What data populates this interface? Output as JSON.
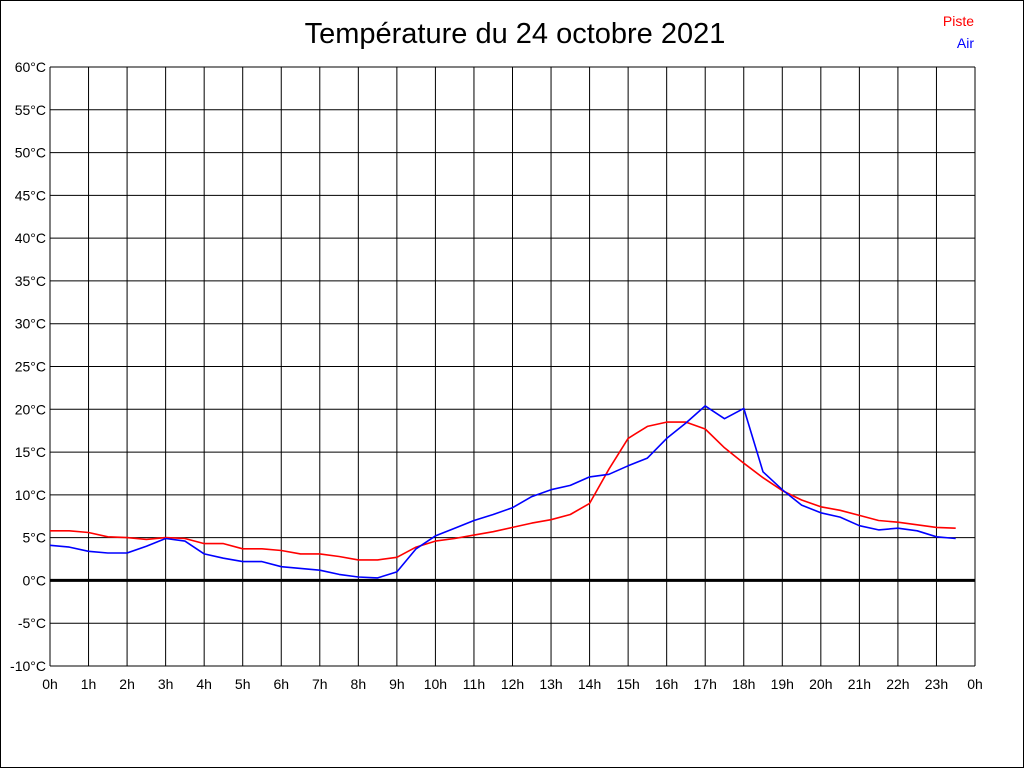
{
  "chart_data": {
    "type": "line",
    "title": "Température du 24 octobre 2021",
    "xlabel": "",
    "ylabel": "",
    "x_ticks": [
      "0h",
      "1h",
      "2h",
      "3h",
      "4h",
      "5h",
      "6h",
      "7h",
      "8h",
      "9h",
      "10h",
      "11h",
      "12h",
      "13h",
      "14h",
      "15h",
      "16h",
      "17h",
      "18h",
      "19h",
      "20h",
      "21h",
      "22h",
      "23h",
      "0h"
    ],
    "y_ticks": [
      "-10°C",
      "-5°C",
      "0°C",
      "5°C",
      "10°C",
      "15°C",
      "20°C",
      "25°C",
      "30°C",
      "35°C",
      "40°C",
      "45°C",
      "50°C",
      "55°C",
      "60°C"
    ],
    "xlim": [
      0,
      24
    ],
    "ylim": [
      -10,
      60
    ],
    "grid": true,
    "legend_position": "top-right",
    "x": [
      0,
      0.5,
      1,
      1.5,
      2,
      2.5,
      3,
      3.5,
      4,
      4.5,
      5,
      5.5,
      6,
      6.5,
      7,
      7.5,
      8,
      8.5,
      9,
      9.5,
      10,
      10.5,
      11,
      11.5,
      12,
      12.5,
      13,
      13.5,
      14,
      14.5,
      15,
      15.5,
      16,
      16.5,
      17,
      17.5,
      18,
      18.5,
      19,
      19.5,
      20,
      20.5,
      21,
      21.5,
      22,
      22.5,
      23,
      23.5
    ],
    "series": [
      {
        "name": "Piste",
        "color": "#ff0000",
        "values": [
          5.8,
          5.8,
          5.6,
          5.1,
          5.0,
          4.8,
          5.0,
          4.9,
          4.3,
          4.3,
          3.7,
          3.7,
          3.5,
          3.1,
          3.1,
          2.8,
          2.4,
          2.4,
          2.7,
          3.9,
          4.6,
          4.9,
          5.3,
          5.7,
          6.2,
          6.7,
          7.1,
          7.7,
          9.0,
          13.0,
          16.6,
          18.0,
          18.5,
          18.5,
          17.7,
          15.5,
          13.7,
          12.0,
          10.5,
          9.4,
          8.6,
          8.2,
          7.6,
          7.0,
          6.8,
          6.5,
          6.2,
          6.1
        ]
      },
      {
        "name": "Air",
        "color": "#0000ff",
        "values": [
          4.1,
          3.9,
          3.4,
          3.2,
          3.2,
          4.0,
          4.9,
          4.6,
          3.1,
          2.6,
          2.2,
          2.2,
          1.6,
          1.4,
          1.2,
          0.7,
          0.4,
          0.3,
          1.0,
          3.7,
          5.2,
          6.1,
          7.0,
          7.7,
          8.5,
          9.8,
          10.6,
          11.1,
          12.1,
          12.4,
          13.4,
          14.3,
          16.6,
          18.4,
          20.4,
          18.9,
          20.1,
          12.7,
          10.6,
          8.8,
          7.9,
          7.4,
          6.4,
          5.9,
          6.1,
          5.8,
          5.1,
          4.9
        ]
      }
    ]
  }
}
